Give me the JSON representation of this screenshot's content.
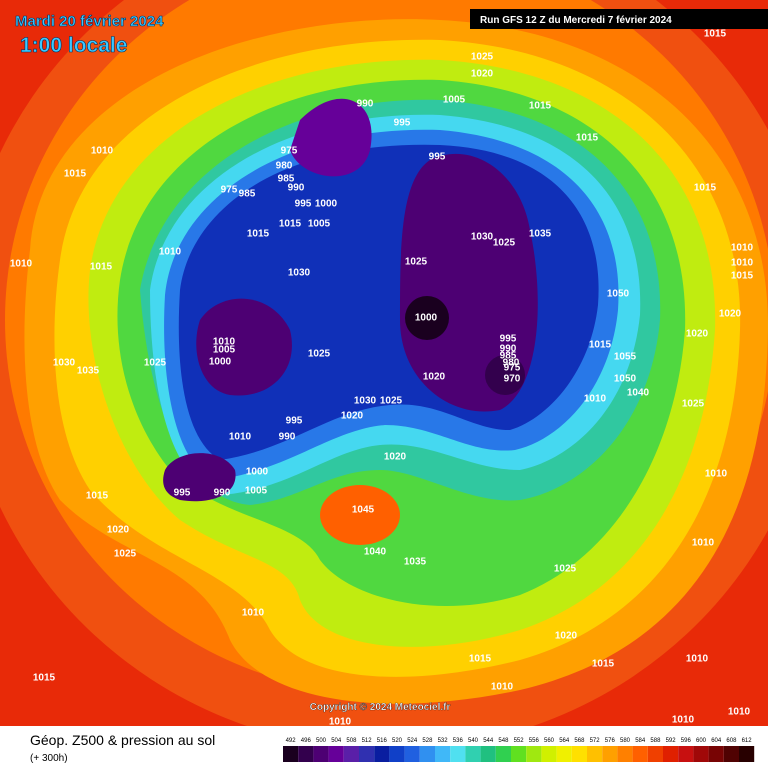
{
  "header": {
    "date": "Mardi 20 février 2024",
    "time": "1:00 locale",
    "run": "Run GFS 12 Z du Mercredi 7 février 2024"
  },
  "copyright": "Copyright © 2024 Meteociel.fr",
  "footer": {
    "title": "Géop. Z500 & pression au sol",
    "subtitle": "(+ 300h)"
  },
  "isobar_labels": [
    1015,
    1025,
    1020,
    1005,
    1015,
    990,
    995,
    1015,
    1010,
    975,
    995,
    980,
    985,
    990,
    1015,
    975,
    985,
    995,
    1000,
    1015,
    1015,
    1015,
    1005,
    1030,
    1025,
    1035,
    1010,
    1010,
    1015,
    1025,
    1030,
    1010,
    1010,
    1015,
    1050,
    1000,
    1010,
    1005,
    1000,
    1030,
    1035,
    1025,
    1025,
    995,
    990,
    985,
    980,
    975,
    970,
    1020,
    1020,
    1020,
    1015,
    1055,
    1050,
    1040,
    1010,
    1025,
    1030,
    1025,
    995,
    990,
    1010,
    1020,
    1020,
    1000,
    1005,
    995,
    990,
    1015,
    1010,
    1045,
    1020,
    1025,
    1040,
    1035,
    1025,
    1010,
    1010,
    1020,
    1015,
    1015,
    1010,
    1010,
    1015,
    1010,
    1010,
    1010
  ],
  "scale": {
    "values": [
      492,
      496,
      500,
      504,
      508,
      512,
      516,
      520,
      524,
      528,
      532,
      536,
      540,
      544,
      548,
      552,
      556,
      560,
      564,
      568,
      572,
      576,
      580,
      584,
      588,
      592,
      596,
      600,
      604,
      608,
      612
    ],
    "colors": [
      "#1a001f",
      "#33004d",
      "#4d0073",
      "#660099",
      "#5a1fa8",
      "#3030b0",
      "#0a1ea0",
      "#1040c8",
      "#2060e0",
      "#3090f0",
      "#40b8f8",
      "#50e0f0",
      "#30d0b0",
      "#20c080",
      "#30d050",
      "#60e020",
      "#a0e810",
      "#d0f000",
      "#f0f000",
      "#ffe000",
      "#ffc000",
      "#ffa000",
      "#ff8000",
      "#ff6000",
      "#f04000",
      "#e02000",
      "#c81010",
      "#a00808",
      "#780404",
      "#500202",
      "#280000"
    ]
  }
}
